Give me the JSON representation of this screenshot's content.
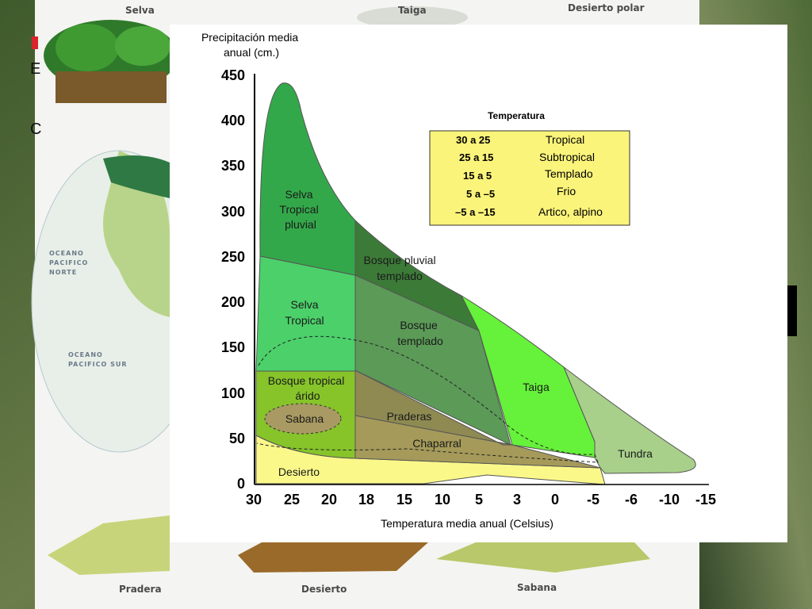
{
  "background": {
    "biome_labels": [
      "Selva",
      "Taiga",
      "Desierto polar",
      "Pradera",
      "Desierto",
      "Sabana"
    ],
    "ocean_labels": [
      "OCEANO PACIFICO NORTE",
      "OCEANO PACIFICO SUR"
    ],
    "partial_text": [
      "E",
      "C"
    ]
  },
  "diagram": {
    "y_axis_title_line1": "Precipitación media",
    "y_axis_title_line2": "anual (cm.)",
    "x_axis_title": "Temperatura media anual (Celsius)",
    "y_ticks": [
      "450",
      "400",
      "350",
      "300",
      "250",
      "200",
      "150",
      "100",
      "50",
      "0"
    ],
    "x_ticks": [
      "30",
      "25",
      "20",
      "18",
      "15",
      "10",
      "5",
      "3",
      "0",
      "-5",
      "-6",
      "-10",
      "-15"
    ],
    "biomes": [
      {
        "name": "Selva Tropical pluvial",
        "lines": [
          "Selva",
          "Tropical",
          "pluvial"
        ],
        "color": "#33a84a"
      },
      {
        "name": "Selva Tropical",
        "lines": [
          "Selva",
          "Tropical"
        ],
        "color": "#4cd06a"
      },
      {
        "name": "Bosque pluvial templado",
        "lines": [
          "Bosque pluvial",
          "templado"
        ],
        "color": "#3c7a38"
      },
      {
        "name": "Bosque templado",
        "lines": [
          "Bosque",
          "templado"
        ],
        "color": "#5b9a57"
      },
      {
        "name": "Taiga",
        "lines": [
          "Taiga"
        ],
        "color": "#66f23a"
      },
      {
        "name": "Tundra",
        "lines": [
          "Tundra"
        ],
        "color": "#a8d08a"
      },
      {
        "name": "Bosque tropical árido",
        "lines": [
          "Bosque tropical",
          "árido"
        ],
        "color": "#86c42a"
      },
      {
        "name": "Sabana",
        "lines": [
          "Sabana"
        ],
        "color": "#a89a62"
      },
      {
        "name": "Praderas",
        "lines": [
          "Praderas"
        ],
        "color": "#8e8a52"
      },
      {
        "name": "Chaparral",
        "lines": [
          "Chaparral"
        ],
        "color": "#a59a5a"
      },
      {
        "name": "Desierto",
        "lines": [
          "Desierto"
        ],
        "color": "#fbf88a"
      }
    ],
    "legend": {
      "title": "Temperatura",
      "rows": [
        {
          "range": "30 a 25",
          "zone": "Tropical"
        },
        {
          "range": "25 a 15",
          "zone": "Subtropical"
        },
        {
          "range": "15 a  5",
          "zone": "Templado"
        },
        {
          "range": "5 a –5",
          "zone": "Frio"
        },
        {
          "range": "–5 a –15",
          "zone": "Artico, alpino"
        }
      ],
      "background": "#fbf47a"
    }
  }
}
